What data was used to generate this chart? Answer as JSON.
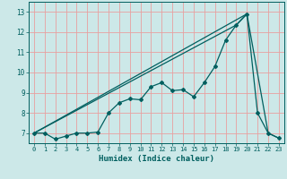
{
  "title": "",
  "xlabel": "Humidex (Indice chaleur)",
  "ylabel": "",
  "background_color": "#cce8e8",
  "grid_color": "#e8a0a0",
  "line_color": "#005f5f",
  "xlim": [
    -0.5,
    23.5
  ],
  "ylim": [
    6.5,
    13.5
  ],
  "xticks": [
    0,
    1,
    2,
    3,
    4,
    5,
    6,
    7,
    8,
    9,
    10,
    11,
    12,
    13,
    14,
    15,
    16,
    17,
    18,
    19,
    20,
    21,
    22,
    23
  ],
  "yticks": [
    7,
    8,
    9,
    10,
    11,
    12,
    13
  ],
  "series1_x": [
    0,
    1,
    2,
    3,
    4,
    5,
    6,
    7,
    8,
    9,
    10,
    11,
    12,
    13,
    14,
    15,
    16,
    17,
    18,
    19,
    20,
    21,
    22,
    23
  ],
  "series1_y": [
    7.0,
    7.0,
    6.7,
    6.85,
    7.0,
    7.0,
    7.05,
    8.0,
    8.5,
    8.7,
    8.65,
    9.3,
    9.5,
    9.1,
    9.15,
    8.8,
    9.5,
    10.3,
    11.6,
    12.35,
    12.9,
    8.0,
    7.0,
    6.75
  ],
  "series2_x": [
    0,
    19,
    20
  ],
  "series2_y": [
    7.0,
    12.35,
    12.9
  ],
  "series3_x": [
    0,
    20,
    22,
    23
  ],
  "series3_y": [
    7.0,
    12.9,
    7.0,
    6.75
  ],
  "marker_size": 2.0,
  "line_width": 0.9,
  "tick_fontsize": 5.0,
  "xlabel_fontsize": 6.5
}
